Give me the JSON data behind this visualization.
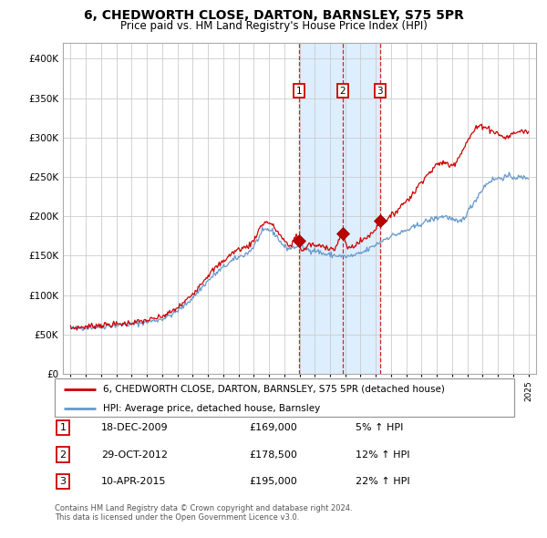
{
  "title": "6, CHEDWORTH CLOSE, DARTON, BARNSLEY, S75 5PR",
  "subtitle": "Price paid vs. HM Land Registry's House Price Index (HPI)",
  "legend_line1": "6, CHEDWORTH CLOSE, DARTON, BARNSLEY, S75 5PR (detached house)",
  "legend_line2": "HPI: Average price, detached house, Barnsley",
  "footer1": "Contains HM Land Registry data © Crown copyright and database right 2024.",
  "footer2": "This data is licensed under the Open Government Licence v3.0.",
  "transactions": [
    {
      "num": 1,
      "date": "18-DEC-2009",
      "price": 169000,
      "pct": "5%",
      "direction": "↑"
    },
    {
      "num": 2,
      "date": "29-OCT-2012",
      "price": 178500,
      "pct": "12%",
      "direction": "↑"
    },
    {
      "num": 3,
      "date": "10-APR-2015",
      "price": 195000,
      "pct": "22%",
      "direction": "↑"
    }
  ],
  "transaction_dates_decimal": [
    2009.96,
    2012.83,
    2015.27
  ],
  "transaction_prices": [
    169000,
    178500,
    195000
  ],
  "shade_start": 2009.96,
  "shade_end": 2015.27,
  "red_line_color": "#cc0000",
  "blue_line_color": "#6699cc",
  "shade_color": "#ddeeff",
  "grid_color": "#cccccc",
  "plot_bg_color": "#ffffff",
  "ylim": [
    0,
    420000
  ],
  "yticks": [
    0,
    50000,
    100000,
    150000,
    200000,
    250000,
    300000,
    350000,
    400000
  ],
  "xlim_start": 1994.5,
  "xlim_end": 2025.5,
  "xtick_years": [
    1995,
    1996,
    1997,
    1998,
    1999,
    2000,
    2001,
    2002,
    2003,
    2004,
    2005,
    2006,
    2007,
    2008,
    2009,
    2010,
    2011,
    2012,
    2013,
    2014,
    2015,
    2016,
    2017,
    2018,
    2019,
    2020,
    2021,
    2022,
    2023,
    2024,
    2025
  ],
  "blue_anchors_t": [
    1995.0,
    1996.0,
    1997.0,
    1998.0,
    1999.0,
    2000.0,
    2001.0,
    2002.0,
    2003.0,
    2004.0,
    2005.0,
    2006.0,
    2007.0,
    2007.5,
    2008.0,
    2008.5,
    2009.0,
    2009.5,
    2010.0,
    2010.5,
    2011.0,
    2011.5,
    2012.0,
    2012.5,
    2013.0,
    2013.5,
    2014.0,
    2014.5,
    2015.0,
    2015.5,
    2016.0,
    2016.5,
    2017.0,
    2017.5,
    2018.0,
    2018.5,
    2019.0,
    2019.5,
    2020.0,
    2020.5,
    2021.0,
    2021.5,
    2022.0,
    2022.5,
    2023.0,
    2023.5,
    2024.0,
    2024.5,
    2025.0
  ],
  "blue_anchors_p": [
    57000,
    59000,
    60000,
    62000,
    63000,
    66000,
    70000,
    80000,
    97000,
    118000,
    135000,
    148000,
    162000,
    178000,
    183000,
    175000,
    162000,
    160000,
    162000,
    158000,
    157000,
    153000,
    151000,
    150000,
    149000,
    150000,
    153000,
    158000,
    164000,
    170000,
    175000,
    178000,
    182000,
    186000,
    191000,
    195000,
    198000,
    200000,
    196000,
    193000,
    205000,
    220000,
    235000,
    245000,
    248000,
    250000,
    250000,
    249000,
    250000
  ],
  "red_anchors_t": [
    1995.0,
    1996.0,
    1997.0,
    1998.0,
    1999.0,
    2000.0,
    2001.0,
    2002.0,
    2003.0,
    2004.0,
    2005.0,
    2006.0,
    2007.0,
    2007.5,
    2008.0,
    2008.5,
    2009.0,
    2009.5,
    2009.96,
    2010.0,
    2010.5,
    2011.0,
    2011.5,
    2012.0,
    2012.5,
    2012.83,
    2013.0,
    2013.5,
    2014.0,
    2014.5,
    2015.0,
    2015.27,
    2015.5,
    2016.0,
    2016.5,
    2017.0,
    2017.5,
    2018.0,
    2018.5,
    2019.0,
    2019.5,
    2020.0,
    2020.5,
    2021.0,
    2021.5,
    2022.0,
    2022.5,
    2023.0,
    2023.5,
    2024.0,
    2024.5,
    2025.0
  ],
  "red_anchors_p": [
    58000,
    60000,
    62000,
    63000,
    65000,
    68000,
    73000,
    84000,
    102000,
    125000,
    143000,
    158000,
    170000,
    188000,
    192000,
    182000,
    169000,
    165000,
    169000,
    165000,
    162000,
    163000,
    162000,
    160000,
    165000,
    178500,
    168000,
    162000,
    168000,
    175000,
    185000,
    195000,
    195000,
    200000,
    210000,
    220000,
    230000,
    245000,
    255000,
    265000,
    268000,
    265000,
    278000,
    295000,
    310000,
    315000,
    310000,
    305000,
    300000,
    305000,
    308000,
    307000
  ]
}
